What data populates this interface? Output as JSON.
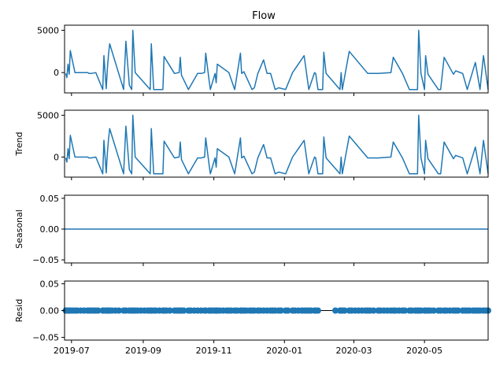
{
  "chart_data": {
    "type": "line",
    "title": "Flow",
    "xlabel": "",
    "series_color": "#1f77b4",
    "x_range": [
      "2019-06-25",
      "2020-06-25"
    ],
    "x_ticks": [
      "2019-07",
      "2019-09",
      "2019-11",
      "2020-01",
      "2020-03",
      "2020-05"
    ],
    "x_tick_dates": [
      "2019-07-01",
      "2019-09-01",
      "2019-11-01",
      "2020-01-01",
      "2020-03-01",
      "2020-05-01"
    ],
    "panels": [
      {
        "ylabel": "",
        "kind": "line",
        "ylim": [
          -2400,
          5600
        ],
        "y_ticks": [
          0,
          5000
        ],
        "y_tick_labels": [
          "0",
          "5000"
        ],
        "x": [
          "2019-06-26",
          "2019-06-27",
          "2019-06-28",
          "2019-06-29",
          "2019-06-30",
          "2019-07-04",
          "2019-07-15",
          "2019-07-16",
          "2019-07-18",
          "2019-07-22",
          "2019-07-28",
          "2019-07-29",
          "2019-07-31",
          "2019-08-01",
          "2019-08-02",
          "2019-08-03",
          "2019-08-15",
          "2019-08-17",
          "2019-08-20",
          "2019-08-22",
          "2019-08-23",
          "2019-08-25",
          "2019-09-07",
          "2019-09-08",
          "2019-09-10",
          "2019-09-18",
          "2019-09-19",
          "2019-09-28",
          "2019-10-02",
          "2019-10-03",
          "2019-10-04",
          "2019-10-10",
          "2019-10-18",
          "2019-10-21",
          "2019-10-24",
          "2019-10-25",
          "2019-10-28",
          "2019-10-29",
          "2019-11-02",
          "2019-11-03",
          "2019-11-04",
          "2019-11-14",
          "2019-11-19",
          "2019-11-24",
          "2019-11-25",
          "2019-11-27",
          "2019-12-04",
          "2019-12-06",
          "2019-12-09",
          "2019-12-14",
          "2019-12-17",
          "2019-12-20",
          "2019-12-24",
          "2019-12-27",
          "2020-01-02",
          "2020-01-08",
          "2020-01-18",
          "2020-01-22",
          "2020-01-27",
          "2020-01-28",
          "2020-01-30",
          "2020-02-03",
          "2020-02-04",
          "2020-02-06",
          "2020-02-18",
          "2020-02-19",
          "2020-02-20",
          "2020-02-26",
          "2020-03-13",
          "2020-03-22",
          "2020-04-02",
          "2020-04-04",
          "2020-04-12",
          "2020-04-18",
          "2020-04-25",
          "2020-04-26",
          "2020-04-28",
          "2020-05-01",
          "2020-05-02",
          "2020-05-04",
          "2020-05-13",
          "2020-05-15",
          "2020-05-18",
          "2020-05-26",
          "2020-05-28",
          "2020-06-03",
          "2020-06-07",
          "2020-06-14",
          "2020-06-18",
          "2020-06-21",
          "2020-06-25"
        ],
        "values": [
          -100,
          -600,
          1000,
          -200,
          2600,
          0,
          0,
          -100,
          -100,
          0,
          -2000,
          2000,
          -1900,
          500,
          2200,
          3400,
          -2000,
          3700,
          -1500,
          -2000,
          5000,
          0,
          -2000,
          3400,
          -2000,
          -2000,
          1900,
          -100,
          0,
          1800,
          -300,
          -2000,
          -100,
          -100,
          0,
          2300,
          -1000,
          -2000,
          -100,
          -1200,
          1000,
          0,
          -2000,
          2300,
          -100,
          100,
          -2000,
          -1800,
          -100,
          1500,
          -100,
          -100,
          -2000,
          -1800,
          -2000,
          0,
          2000,
          -2000,
          0,
          -100,
          -2000,
          -2000,
          2400,
          -100,
          -2000,
          0,
          -2000,
          2500,
          -100,
          -100,
          0,
          1800,
          -100,
          -2000,
          -2000,
          5000,
          -100,
          -2000,
          2000,
          -200,
          -2000,
          -2000,
          1800,
          -200,
          200,
          -100,
          -2000,
          1200,
          -2000,
          2000,
          -2000
        ]
      },
      {
        "ylabel": "Trend",
        "kind": "line",
        "ylim": [
          -2400,
          5600
        ],
        "y_ticks": [
          0,
          5000
        ],
        "y_tick_labels": [
          "0",
          "5000"
        ],
        "same_as_panel": 0
      },
      {
        "ylabel": "Seasonal",
        "kind": "flat-line",
        "ylim": [
          -0.055,
          0.055
        ],
        "y_ticks": [
          -0.05,
          0.0,
          0.05
        ],
        "y_tick_labels": [
          "−0.05",
          "0.00",
          "0.05"
        ],
        "value": 0.0
      },
      {
        "ylabel": "Resid",
        "kind": "scatter",
        "ylim": [
          -0.055,
          0.055
        ],
        "y_ticks": [
          -0.05,
          0.0,
          0.05
        ],
        "y_tick_labels": [
          "−0.05",
          "0.00",
          "0.05"
        ],
        "value": 0.0,
        "gaps": [
          [
            "2020-01-31",
            "2020-02-12"
          ]
        ]
      }
    ]
  }
}
